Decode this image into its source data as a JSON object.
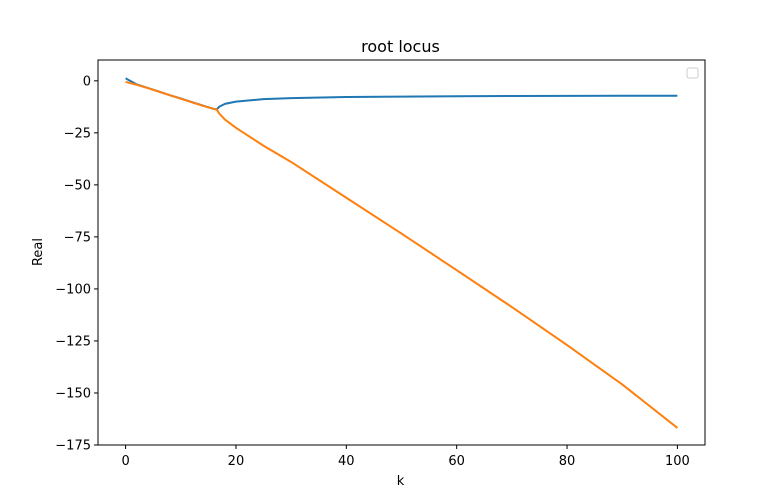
{
  "chart_data": {
    "type": "line",
    "title": "root locus",
    "xlabel": "k",
    "ylabel": "Real",
    "xlim": [
      -5,
      105
    ],
    "ylim": [
      -175,
      10
    ],
    "xticks": [
      0,
      20,
      40,
      60,
      80,
      100
    ],
    "xtick_labels": [
      "0",
      "20",
      "40",
      "60",
      "80",
      "100"
    ],
    "yticks": [
      0,
      -25,
      -50,
      -75,
      -100,
      -125,
      -150,
      -175
    ],
    "ytick_labels": [
      "0",
      "−25",
      "−50",
      "−75",
      "−100",
      "−125",
      "−150",
      "−175"
    ],
    "grid": false,
    "legend": {
      "placement": "top-right",
      "entries": []
    },
    "series": [
      {
        "color": "#1f77b4",
        "x": [
          0,
          2,
          4,
          6,
          8,
          10,
          12,
          14,
          16,
          16.5,
          17,
          18,
          20,
          25,
          30,
          40,
          50,
          60,
          70,
          80,
          90,
          100
        ],
        "y": [
          1.2,
          -1.7,
          -3.4,
          -5.1,
          -6.9,
          -8.5,
          -10.2,
          -11.9,
          -13.5,
          -13.8,
          -12.4,
          -11.1,
          -10.0,
          -8.8,
          -8.3,
          -7.8,
          -7.6,
          -7.4,
          -7.3,
          -7.25,
          -7.2,
          -7.2
        ]
      },
      {
        "color": "#ff7f0e",
        "x": [
          0,
          2,
          4,
          6,
          8,
          10,
          12,
          14,
          16,
          16.5,
          17,
          18,
          20,
          25,
          30,
          40,
          50,
          60,
          70,
          80,
          90,
          100
        ],
        "y": [
          -0.5,
          -1.9,
          -3.5,
          -5.2,
          -6.9,
          -8.6,
          -10.3,
          -12.0,
          -13.5,
          -13.8,
          -15.8,
          -18.6,
          -22.6,
          -31.2,
          -39.0,
          -56.2,
          -73.4,
          -91.0,
          -108.7,
          -127.0,
          -145.9,
          -166.8
        ]
      }
    ],
    "colors": {
      "axes": "#000000",
      "background": "#ffffff"
    }
  }
}
